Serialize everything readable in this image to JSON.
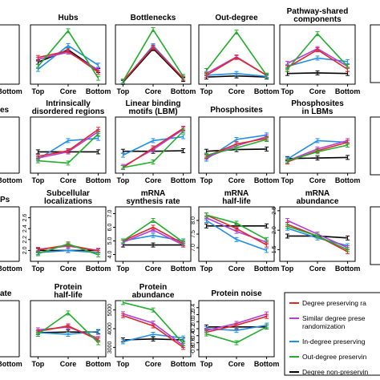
{
  "colors": {
    "red": "#e0262b",
    "purple": "#b23fd8",
    "blue": "#1f8ee6",
    "green": "#22ad2b",
    "black": "#000000"
  },
  "legend": [
    {
      "label": "Degree preserving ra",
      "color": "#e0262b"
    },
    {
      "label": "Similar degree prese",
      "label2": "randomization",
      "color": "#b23fd8"
    },
    {
      "label": "In-degree preserving",
      "color": "#1f8ee6"
    },
    {
      "label": "Out-degree preservin",
      "color": "#22ad2b"
    },
    {
      "label": "Degree non-preservin",
      "color": "#000000"
    }
  ],
  "categories": [
    "Top",
    "Core",
    "Bottom"
  ],
  "chart_data": [
    {
      "type": "line",
      "title": "Hubs",
      "ylim": [
        0,
        10
      ],
      "yticks": [],
      "series": [
        {
          "color": "red",
          "values": [
            4.5,
            5.6,
            2.0
          ]
        },
        {
          "color": "purple",
          "values": [
            4.2,
            5.4,
            2.4
          ]
        },
        {
          "color": "blue",
          "values": [
            2.5,
            6.5,
            3.2
          ]
        },
        {
          "color": "green",
          "values": [
            3.0,
            9.0,
            1.0
          ]
        },
        {
          "color": "black",
          "values": [
            3.7,
            5.8,
            2.3
          ]
        }
      ]
    },
    {
      "type": "line",
      "title": "Bottlenecks",
      "ylim": [
        0,
        10
      ],
      "yticks": [],
      "series": [
        {
          "color": "red",
          "values": [
            0.5,
            6.2,
            1.0
          ]
        },
        {
          "color": "purple",
          "values": [
            0.5,
            6.3,
            1.0
          ]
        },
        {
          "color": "blue",
          "values": [
            0.4,
            6.5,
            1.0
          ]
        },
        {
          "color": "green",
          "values": [
            0.5,
            9.2,
            1.3
          ]
        },
        {
          "color": "black",
          "values": [
            0.3,
            6.0,
            0.8
          ]
        }
      ]
    },
    {
      "type": "line",
      "title": "Out-degree",
      "ylim": [
        0,
        10
      ],
      "yticks": [],
      "series": [
        {
          "color": "red",
          "values": [
            1.5,
            4.5,
            1.5
          ]
        },
        {
          "color": "purple",
          "values": [
            1.8,
            4.6,
            1.5
          ]
        },
        {
          "color": "blue",
          "values": [
            1.5,
            1.8,
            1.3
          ]
        },
        {
          "color": "green",
          "values": [
            2.3,
            8.8,
            1.5
          ]
        },
        {
          "color": "black",
          "values": [
            1.2,
            1.4,
            1.2
          ]
        }
      ]
    },
    {
      "type": "line",
      "title": "Pathway-shared",
      "title2": "components",
      "ylim": [
        0,
        10
      ],
      "yticks": [],
      "series": [
        {
          "color": "red",
          "values": [
            2.8,
            5.8,
            2.5
          ]
        },
        {
          "color": "purple",
          "values": [
            3.5,
            6.0,
            3.0
          ]
        },
        {
          "color": "blue",
          "values": [
            3.0,
            4.4,
            3.8
          ]
        },
        {
          "color": "green",
          "values": [
            2.5,
            8.5,
            3.0
          ]
        },
        {
          "color": "black",
          "values": [
            1.8,
            1.9,
            1.8
          ]
        }
      ]
    },
    {
      "type": "line",
      "title": "Intrinsically",
      "title2": "disordered regions",
      "ylim": [
        0,
        10
      ],
      "yticks": [],
      "series": [
        {
          "color": "red",
          "values": [
            3.0,
            4.0,
            7.8
          ]
        },
        {
          "color": "purple",
          "values": [
            2.7,
            3.8,
            7.4
          ]
        },
        {
          "color": "blue",
          "values": [
            2.5,
            5.8,
            6.2
          ]
        },
        {
          "color": "green",
          "values": [
            2.2,
            1.8,
            7.0
          ]
        },
        {
          "color": "black",
          "values": [
            3.8,
            3.8,
            3.8
          ]
        }
      ]
    },
    {
      "type": "line",
      "title": "Linear binding",
      "title2": "motifs (LBM)",
      "ylim": [
        0,
        10
      ],
      "yticks": [],
      "series": [
        {
          "color": "red",
          "values": [
            1.0,
            4.5,
            8.0
          ]
        },
        {
          "color": "purple",
          "values": [
            1.2,
            4.2,
            7.8
          ]
        },
        {
          "color": "blue",
          "values": [
            3.2,
            5.8,
            6.5
          ]
        },
        {
          "color": "green",
          "values": [
            1.0,
            2.0,
            7.5
          ]
        },
        {
          "color": "black",
          "values": [
            3.9,
            3.9,
            4.0
          ]
        }
      ]
    },
    {
      "type": "line",
      "title": "Phosphosites",
      "ylim": [
        0,
        10
      ],
      "yticks": [],
      "series": [
        {
          "color": "red",
          "values": [
            3.0,
            5.2,
            6.2
          ]
        },
        {
          "color": "purple",
          "values": [
            2.8,
            4.9,
            6.5
          ]
        },
        {
          "color": "blue",
          "values": [
            2.5,
            6.0,
            6.8
          ]
        },
        {
          "color": "green",
          "values": [
            3.2,
            4.5,
            6.0
          ]
        },
        {
          "color": "black",
          "values": [
            3.9,
            4.2,
            4.3
          ]
        }
      ]
    },
    {
      "type": "line",
      "title": "Phosphosites",
      "title2": "in LBMs",
      "ylim": [
        0,
        10
      ],
      "yticks": [],
      "series": [
        {
          "color": "red",
          "values": [
            2.0,
            4.0,
            5.5
          ]
        },
        {
          "color": "purple",
          "values": [
            2.2,
            4.3,
            5.8
          ]
        },
        {
          "color": "blue",
          "values": [
            2.5,
            5.8,
            5.5
          ]
        },
        {
          "color": "green",
          "values": [
            2.2,
            3.8,
            5.0
          ]
        },
        {
          "color": "black",
          "values": [
            2.6,
            2.7,
            2.8
          ]
        }
      ]
    },
    {
      "type": "line",
      "title": "Subcellular",
      "title2": "localizations",
      "ylim": [
        1.8,
        2.8
      ],
      "yticks": [
        "2.0",
        "2.2",
        "2.4",
        "2.6"
      ],
      "series": [
        {
          "color": "red",
          "values": [
            2.01,
            2.1,
            1.99
          ]
        },
        {
          "color": "purple",
          "values": [
            2.02,
            2.08,
            2.0
          ]
        },
        {
          "color": "blue",
          "values": [
            1.96,
            2.0,
            1.96
          ]
        },
        {
          "color": "green",
          "values": [
            1.94,
            2.12,
            1.92
          ]
        },
        {
          "color": "black",
          "values": [
            2.0,
            2.0,
            2.0
          ]
        }
      ]
    },
    {
      "type": "line",
      "title": "mRNA",
      "title2": "synthesis rate",
      "ylim": [
        3.5,
        7.5
      ],
      "yticks": [
        "4.0",
        "5.0",
        "6.0",
        "7.0"
      ],
      "series": [
        {
          "color": "red",
          "values": [
            5.0,
            6.0,
            4.8
          ]
        },
        {
          "color": "purple",
          "values": [
            4.9,
            5.8,
            4.7
          ]
        },
        {
          "color": "blue",
          "values": [
            5.0,
            5.4,
            5.0
          ]
        },
        {
          "color": "green",
          "values": [
            5.0,
            6.5,
            4.9
          ]
        },
        {
          "color": "black",
          "values": [
            4.7,
            4.7,
            4.7
          ]
        }
      ]
    },
    {
      "type": "line",
      "title": "mRNA",
      "title2": "half-life",
      "ylim": [
        6.5,
        8.5
      ],
      "yticks": [
        "7.0",
        "7.5",
        "8.0"
      ],
      "series": [
        {
          "color": "red",
          "values": [
            8.2,
            7.7,
            7.1
          ]
        },
        {
          "color": "purple",
          "values": [
            8.1,
            7.6,
            7.2
          ]
        },
        {
          "color": "blue",
          "values": [
            8.0,
            7.3,
            6.9
          ]
        },
        {
          "color": "green",
          "values": [
            8.2,
            7.9,
            7.3
          ]
        },
        {
          "color": "black",
          "values": [
            7.8,
            7.8,
            7.8
          ]
        }
      ]
    },
    {
      "type": "line",
      "title": "mRNA",
      "title2": "abundance",
      "ylim": [
        1.2,
        2.6
      ],
      "yticks": [
        "1.5",
        "2.0",
        "2.5"
      ],
      "series": [
        {
          "color": "red",
          "values": [
            2.15,
            1.85,
            1.45
          ]
        },
        {
          "color": "purple",
          "values": [
            2.25,
            1.9,
            1.55
          ]
        },
        {
          "color": "blue",
          "values": [
            2.05,
            1.8,
            1.6
          ]
        },
        {
          "color": "green",
          "values": [
            2.1,
            1.85,
            1.5
          ]
        },
        {
          "color": "black",
          "values": [
            1.85,
            1.85,
            1.8
          ]
        }
      ]
    },
    {
      "type": "line",
      "title": "Protein",
      "title2": "half-life",
      "ylim": [
        0,
        10
      ],
      "yticks": [],
      "series": [
        {
          "color": "red",
          "values": [
            4.5,
            5.5,
            3.0
          ]
        },
        {
          "color": "purple",
          "values": [
            4.8,
            5.3,
            3.3
          ]
        },
        {
          "color": "blue",
          "values": [
            4.3,
            4.0,
            4.5
          ]
        },
        {
          "color": "green",
          "values": [
            4.0,
            7.8,
            2.5
          ]
        },
        {
          "color": "black",
          "values": [
            4.3,
            4.4,
            4.4
          ]
        }
      ]
    },
    {
      "type": "line",
      "title": "Protein",
      "title2": "abundance",
      "ylim": [
        2500,
        5500
      ],
      "yticks": [
        "3000",
        "4000",
        "5000"
      ],
      "series": [
        {
          "color": "red",
          "values": [
            4700,
            4150,
            3000
          ]
        },
        {
          "color": "purple",
          "values": [
            4800,
            4300,
            3100
          ]
        },
        {
          "color": "blue",
          "values": [
            3300,
            3700,
            3500
          ]
        },
        {
          "color": "green",
          "values": [
            5400,
            5000,
            3200
          ]
        },
        {
          "color": "black",
          "values": [
            3400,
            3450,
            3400
          ]
        }
      ]
    },
    {
      "type": "line",
      "title": "Protein noise",
      "ylim": [
        -1.0,
        0.6
      ],
      "yticks": [
        "-0.8",
        "-0.6",
        "-0.4",
        "-0.2",
        "0.0",
        "0.2",
        "0.4"
      ],
      "series": [
        {
          "color": "red",
          "values": [
            -0.3,
            -0.1,
            0.15
          ]
        },
        {
          "color": "purple",
          "values": [
            -0.25,
            -0.05,
            0.22
          ]
        },
        {
          "color": "blue",
          "values": [
            -0.2,
            -0.25,
            -0.1
          ]
        },
        {
          "color": "green",
          "values": [
            -0.35,
            -0.6,
            -0.15
          ]
        },
        {
          "color": "black",
          "values": [
            -0.15,
            -0.15,
            -0.15
          ]
        }
      ]
    }
  ]
}
